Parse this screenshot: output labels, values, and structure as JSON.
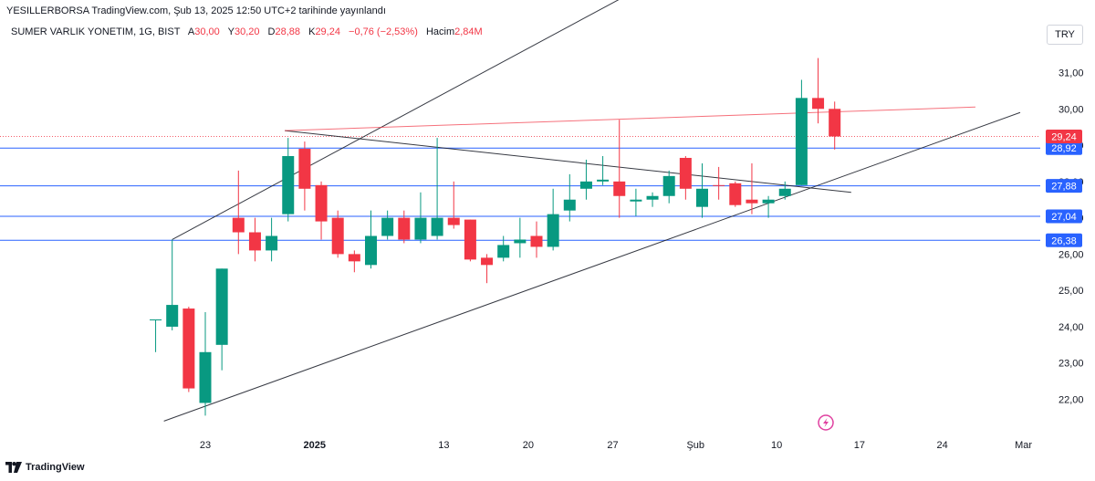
{
  "header": {
    "published": "YESILLERBORSA TradingView.com, Şub 13, 2025 12:50 UTC+2 tarihinde yayınlandı",
    "symbol": "SUMER VARLIK YONETIM, 1G, BIST",
    "open_label": "A",
    "open_value": "30,00",
    "high_label": "Y",
    "high_value": "30,20",
    "low_label": "D",
    "low_value": "28,88",
    "close_label": "K",
    "close_value": "29,24",
    "change": "−0,76 (−2,53%)",
    "volume_label": "Hacim",
    "volume_value": "2,84M",
    "currency": "TRY"
  },
  "footer": {
    "brand": "TradingView"
  },
  "colors": {
    "up": "#089981",
    "down": "#f23645",
    "hline": "#2962ff",
    "trend": "#131722",
    "resistance": "#f23645",
    "price_badge": "#f23645",
    "level_badge": "#2962ff"
  },
  "chart_data": {
    "type": "candlestick",
    "title": "SUMER VARLIK YONETIM, 1G, BIST",
    "y_range": [
      21.2,
      31.9
    ],
    "y_ticks": [
      22,
      23,
      24,
      25,
      26,
      27,
      28,
      29,
      30,
      31
    ],
    "y_tick_labels": [
      "22,00",
      "23,00",
      "24,00",
      "25,00",
      "26,00",
      "27,00",
      "28,00",
      "29,00",
      "30,00",
      "31,00"
    ],
    "x_labels": [
      {
        "t": 0.0,
        "label": "23",
        "bold": false
      },
      {
        "t": 6.6,
        "label": "2025",
        "bold": true
      },
      {
        "t": 14.4,
        "label": "13",
        "bold": false
      },
      {
        "t": 19.5,
        "label": "20",
        "bold": false
      },
      {
        "t": 24.6,
        "label": "27",
        "bold": false
      },
      {
        "t": 29.6,
        "label": "Şub",
        "bold": false
      },
      {
        "t": 34.5,
        "label": "10",
        "bold": false
      },
      {
        "t": 39.5,
        "label": "17",
        "bold": false
      },
      {
        "t": 44.5,
        "label": "24",
        "bold": false
      },
      {
        "t": 49.4,
        "label": "Mar",
        "bold": false
      }
    ],
    "candles": [
      {
        "t": -3.0,
        "o": 24.2,
        "h": 24.2,
        "l": 23.3,
        "c": 24.2
      },
      {
        "t": -2.0,
        "o": 24.0,
        "h": 26.4,
        "l": 23.9,
        "c": 24.6
      },
      {
        "t": -1.0,
        "o": 24.5,
        "h": 24.55,
        "l": 22.2,
        "c": 22.3
      },
      {
        "t": 0.0,
        "o": 21.9,
        "h": 24.4,
        "l": 21.55,
        "c": 23.3
      },
      {
        "t": 1.0,
        "o": 23.5,
        "h": 25.6,
        "l": 22.8,
        "c": 25.6
      },
      {
        "t": 2.0,
        "o": 27.0,
        "h": 28.3,
        "l": 26.0,
        "c": 26.6
      },
      {
        "t": 3.0,
        "o": 26.6,
        "h": 27.0,
        "l": 25.8,
        "c": 26.1
      },
      {
        "t": 4.0,
        "o": 26.1,
        "h": 27.0,
        "l": 25.8,
        "c": 26.5
      },
      {
        "t": 5.0,
        "o": 27.1,
        "h": 29.2,
        "l": 26.9,
        "c": 28.7
      },
      {
        "t": 6.0,
        "o": 28.9,
        "h": 29.1,
        "l": 27.2,
        "c": 27.8
      },
      {
        "t": 7.0,
        "o": 27.9,
        "h": 28.0,
        "l": 26.4,
        "c": 26.9
      },
      {
        "t": 8.0,
        "o": 27.0,
        "h": 27.2,
        "l": 25.9,
        "c": 26.0
      },
      {
        "t": 9.0,
        "o": 26.0,
        "h": 26.1,
        "l": 25.5,
        "c": 25.8
      },
      {
        "t": 10.0,
        "o": 25.7,
        "h": 27.2,
        "l": 25.6,
        "c": 26.5
      },
      {
        "t": 11.0,
        "o": 26.5,
        "h": 27.2,
        "l": 26.4,
        "c": 27.0
      },
      {
        "t": 12.0,
        "o": 27.0,
        "h": 27.2,
        "l": 26.3,
        "c": 26.4
      },
      {
        "t": 13.0,
        "o": 26.4,
        "h": 27.7,
        "l": 26.3,
        "c": 27.0
      },
      {
        "t": 14.0,
        "o": 26.5,
        "h": 29.2,
        "l": 26.4,
        "c": 27.0
      },
      {
        "t": 15.0,
        "o": 27.0,
        "h": 28.0,
        "l": 26.7,
        "c": 26.8
      },
      {
        "t": 16.0,
        "o": 26.95,
        "h": 26.95,
        "l": 25.8,
        "c": 25.85
      },
      {
        "t": 17.0,
        "o": 25.9,
        "h": 26.0,
        "l": 25.2,
        "c": 25.7
      },
      {
        "t": 18.0,
        "o": 25.9,
        "h": 26.5,
        "l": 25.8,
        "c": 26.25
      },
      {
        "t": 19.0,
        "o": 26.3,
        "h": 27.0,
        "l": 25.9,
        "c": 26.4
      },
      {
        "t": 20.0,
        "o": 26.5,
        "h": 26.9,
        "l": 25.9,
        "c": 26.2
      },
      {
        "t": 21.0,
        "o": 26.2,
        "h": 27.8,
        "l": 26.1,
        "c": 27.1
      },
      {
        "t": 22.0,
        "o": 27.2,
        "h": 28.2,
        "l": 26.9,
        "c": 27.5
      },
      {
        "t": 23.0,
        "o": 27.8,
        "h": 28.6,
        "l": 27.5,
        "c": 28.0
      },
      {
        "t": 24.0,
        "o": 28.0,
        "h": 28.7,
        "l": 27.9,
        "c": 28.05
      },
      {
        "t": 25.0,
        "o": 28.0,
        "h": 29.7,
        "l": 27.0,
        "c": 27.6
      },
      {
        "t": 26.0,
        "o": 27.45,
        "h": 27.8,
        "l": 27.05,
        "c": 27.5
      },
      {
        "t": 27.0,
        "o": 27.5,
        "h": 27.7,
        "l": 27.3,
        "c": 27.6
      },
      {
        "t": 28.0,
        "o": 27.6,
        "h": 28.3,
        "l": 27.4,
        "c": 28.15
      },
      {
        "t": 29.0,
        "o": 28.65,
        "h": 28.7,
        "l": 27.5,
        "c": 27.8
      },
      {
        "t": 30.0,
        "o": 27.3,
        "h": 28.5,
        "l": 27.0,
        "c": 27.8
      },
      {
        "t": 31.0,
        "o": 27.9,
        "h": 28.4,
        "l": 27.5,
        "c": 27.88
      },
      {
        "t": 32.0,
        "o": 27.95,
        "h": 28.0,
        "l": 27.3,
        "c": 27.35
      },
      {
        "t": 33.0,
        "o": 27.5,
        "h": 28.5,
        "l": 27.1,
        "c": 27.4
      },
      {
        "t": 34.0,
        "o": 27.4,
        "h": 27.6,
        "l": 27.0,
        "c": 27.5
      },
      {
        "t": 35.0,
        "o": 27.6,
        "h": 28.0,
        "l": 27.5,
        "c": 27.8
      },
      {
        "t": 36.0,
        "o": 27.9,
        "h": 30.8,
        "l": 27.9,
        "c": 30.3
      },
      {
        "t": 37.0,
        "o": 30.3,
        "h": 31.4,
        "l": 29.6,
        "c": 30.0
      },
      {
        "t": 38.0,
        "o": 30.0,
        "h": 30.2,
        "l": 28.88,
        "c": 29.24
      }
    ],
    "horizontal_lines": [
      {
        "name": "level-28-92",
        "y": 28.92,
        "label": "28,92"
      },
      {
        "name": "level-27-88",
        "y": 27.88,
        "label": "27,88"
      },
      {
        "name": "level-27-04",
        "y": 27.04,
        "label": "27,04"
      },
      {
        "name": "level-26-38",
        "y": 26.38,
        "label": "26,38"
      }
    ],
    "trendlines": [
      {
        "name": "channel-upper",
        "t1": -2.0,
        "y1": 26.4,
        "t2": 28.6,
        "y2": 33.9,
        "color": "trend"
      },
      {
        "name": "channel-lower",
        "t1": -2.5,
        "y1": 21.4,
        "t2": 49.2,
        "y2": 29.9,
        "color": "trend"
      },
      {
        "name": "descending-line",
        "t1": 4.8,
        "y1": 29.4,
        "t2": 39.0,
        "y2": 27.7,
        "color": "trend"
      },
      {
        "name": "resistance-line",
        "t1": 4.8,
        "y1": 29.4,
        "t2": 46.5,
        "y2": 30.05,
        "color": "resistance"
      }
    ],
    "last_price": {
      "y": 29.24,
      "label": "29,24"
    }
  }
}
